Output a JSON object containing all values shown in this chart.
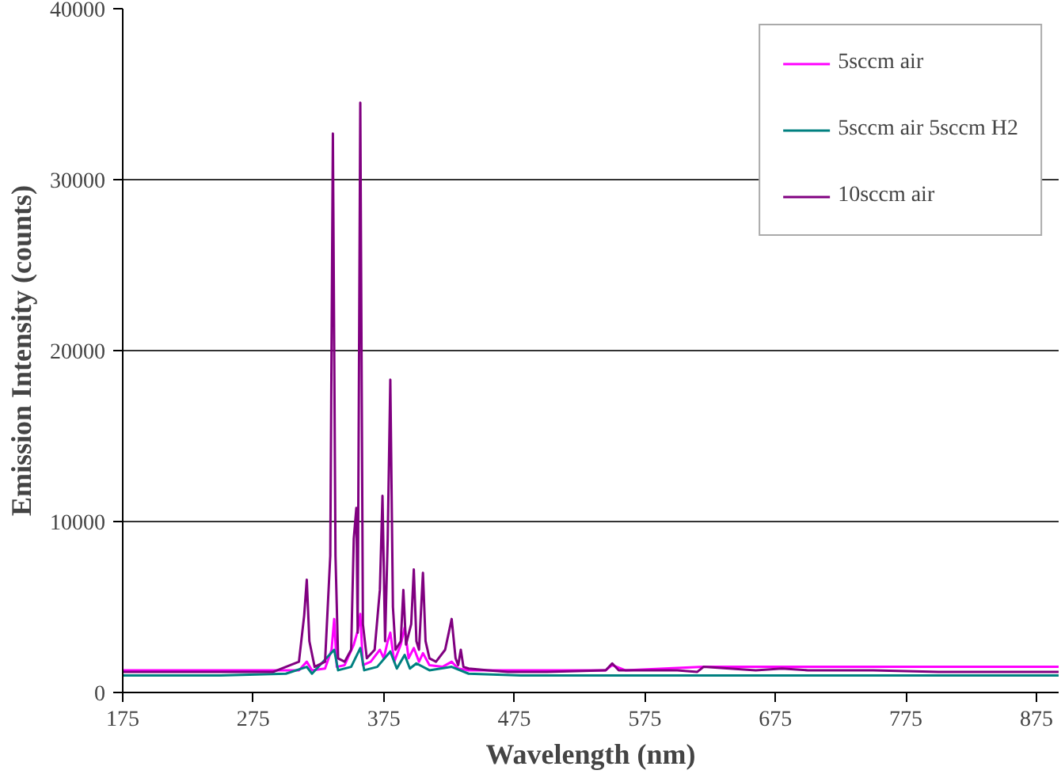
{
  "chart_data": {
    "type": "line",
    "xlabel": "Wavelength (nm)",
    "ylabel": "Emission Intensity (counts)",
    "xlim": [
      175,
      892
    ],
    "ylim": [
      0,
      40000
    ],
    "xticks": [
      175,
      275,
      375,
      475,
      575,
      675,
      775,
      875
    ],
    "yticks": [
      0,
      10000,
      20000,
      30000,
      40000
    ],
    "grid": "y",
    "legend": "top right",
    "marker": "none",
    "line_style": "solid",
    "series": [
      {
        "name": "5sccm air",
        "color": "#ff00ff",
        "x": [
          175,
          250,
          300,
          310,
          316,
          320,
          330,
          335,
          337,
          339,
          345,
          352,
          355,
          357,
          359,
          365,
          372,
          375,
          378,
          380,
          383,
          388,
          391,
          394,
          398,
          402,
          405,
          410,
          420,
          427,
          432,
          440,
          480,
          545,
          550,
          560,
          620,
          700,
          800,
          892
        ],
        "values": [
          1300,
          1300,
          1300,
          1300,
          1800,
          1300,
          1400,
          2500,
          4300,
          1500,
          1600,
          2800,
          3600,
          4600,
          1600,
          1800,
          2500,
          2000,
          3000,
          3500,
          1800,
          2800,
          3800,
          2000,
          2600,
          1800,
          2300,
          1600,
          1500,
          1800,
          1400,
          1300,
          1300,
          1300,
          1600,
          1300,
          1500,
          1500,
          1500,
          1500
        ]
      },
      {
        "name": "5sccm air 5sccm H2",
        "color": "#008080",
        "x": [
          175,
          250,
          300,
          316,
          320,
          337,
          340,
          350,
          357,
          360,
          370,
          380,
          385,
          391,
          395,
          400,
          410,
          427,
          440,
          480,
          600,
          892
        ],
        "values": [
          1000,
          1000,
          1100,
          1500,
          1100,
          2500,
          1300,
          1500,
          2600,
          1300,
          1500,
          2400,
          1400,
          2200,
          1400,
          1700,
          1300,
          1500,
          1100,
          1000,
          1000,
          1000
        ]
      },
      {
        "name": "10sccm air",
        "color": "#800080",
        "x": [
          175,
          250,
          290,
          300,
          310,
          314,
          316,
          318,
          322,
          330,
          334,
          336,
          338,
          340,
          345,
          350,
          352,
          354,
          355,
          357,
          359,
          362,
          368,
          372,
          374,
          376,
          378,
          380,
          382,
          384,
          388,
          390,
          392,
          396,
          398,
          400,
          402,
          405,
          407,
          410,
          415,
          422,
          427,
          430,
          432,
          434,
          436,
          440,
          455,
          470,
          500,
          545,
          550,
          555,
          600,
          615,
          620,
          660,
          680,
          700,
          750,
          800,
          850,
          892
        ],
        "values": [
          1200,
          1200,
          1200,
          1500,
          1800,
          4500,
          6600,
          3000,
          1500,
          1800,
          8000,
          32700,
          8000,
          2000,
          1800,
          2500,
          9000,
          10800,
          3500,
          34500,
          4000,
          2000,
          2500,
          6000,
          11500,
          3000,
          9000,
          18300,
          5000,
          2500,
          3000,
          6000,
          2800,
          4000,
          7200,
          3000,
          2500,
          7000,
          3000,
          2000,
          1800,
          2500,
          4300,
          2000,
          1600,
          2500,
          1500,
          1400,
          1300,
          1200,
          1200,
          1300,
          1700,
          1300,
          1300,
          1200,
          1500,
          1300,
          1400,
          1300,
          1300,
          1200,
          1200,
          1200
        ]
      }
    ]
  }
}
